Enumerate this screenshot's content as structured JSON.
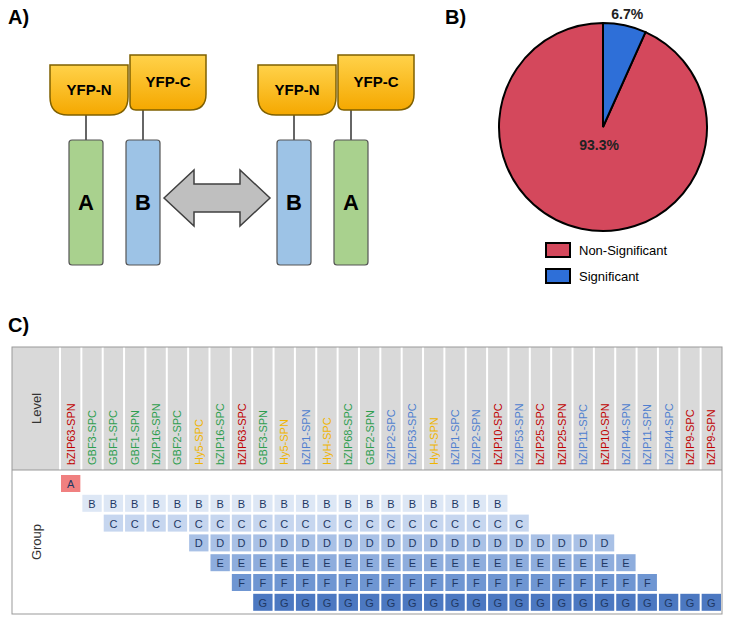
{
  "panel_a": {
    "label": "A)",
    "pairs": [
      [
        {
          "tag": "YFP-N",
          "protein": "A",
          "color": "#a9d18e"
        },
        {
          "tag": "YFP-C",
          "protein": "B",
          "color": "#9dc3e6"
        }
      ],
      [
        {
          "tag": "YFP-N",
          "protein": "B",
          "color": "#9dc3e6"
        },
        {
          "tag": "YFP-C",
          "protein": "A",
          "color": "#a9d18e"
        }
      ]
    ]
  },
  "chart_data": {
    "type": "pie",
    "title": "B)",
    "categories": [
      "Non-Significant",
      "Significant"
    ],
    "values": [
      93.3,
      6.7
    ],
    "value_labels": [
      "93.3%",
      "6.7%"
    ],
    "colors": [
      "#d4485c",
      "#2e6fd8"
    ],
    "data_labels": true,
    "legend": "bottom-right"
  },
  "panel_c": {
    "label": "C)",
    "row_titles": [
      "Level",
      "Group"
    ],
    "levels": [
      {
        "name": "bZIP63-SPN",
        "color": "#c00000"
      },
      {
        "name": "GBF3-SPC",
        "color": "#2e9e4f"
      },
      {
        "name": "GBF1-SPC",
        "color": "#2e9e4f"
      },
      {
        "name": "GBF1-SPN",
        "color": "#2e9e4f"
      },
      {
        "name": "bZIP16-SPN",
        "color": "#2e9e4f"
      },
      {
        "name": "GBF2-SPC",
        "color": "#2e9e4f"
      },
      {
        "name": "Hy5-SPC",
        "color": "#f0b400"
      },
      {
        "name": "bZIP16-SPC",
        "color": "#2e9e4f"
      },
      {
        "name": "bZIP63-SPC",
        "color": "#c00000"
      },
      {
        "name": "GBF3-SPN",
        "color": "#2e9e4f"
      },
      {
        "name": "Hy5-SPN",
        "color": "#f0b400"
      },
      {
        "name": "bZIP1-SPN",
        "color": "#4f7fcf"
      },
      {
        "name": "HyH-SPC",
        "color": "#f0b400"
      },
      {
        "name": "bZIP68-SPC",
        "color": "#2e9e4f"
      },
      {
        "name": "GBF2-SPN",
        "color": "#2e9e4f"
      },
      {
        "name": "bZIP2-SPC",
        "color": "#4f7fcf"
      },
      {
        "name": "bZIP53-SPC",
        "color": "#4f7fcf"
      },
      {
        "name": "HyH-SPN",
        "color": "#f0b400"
      },
      {
        "name": "bZIP1-SPC",
        "color": "#4f7fcf"
      },
      {
        "name": "bZIP2-SPN",
        "color": "#4f7fcf"
      },
      {
        "name": "bZIP10-SPC",
        "color": "#c00000"
      },
      {
        "name": "bZIP53-SPN",
        "color": "#4f7fcf"
      },
      {
        "name": "bZIP25-SPC",
        "color": "#c00000"
      },
      {
        "name": "bZIP25-SPN",
        "color": "#c00000"
      },
      {
        "name": "bZIP11-SPC",
        "color": "#4f7fcf"
      },
      {
        "name": "bZIP10-SPN",
        "color": "#c00000"
      },
      {
        "name": "bZIP44-SPN",
        "color": "#4f7fcf"
      },
      {
        "name": "bZIP11-SPN",
        "color": "#4f7fcf"
      },
      {
        "name": "bZIP44-SPC",
        "color": "#4f7fcf"
      },
      {
        "name": "bZIP9-SPC",
        "color": "#c00000"
      },
      {
        "name": "bZIP9-SPN",
        "color": "#c00000"
      }
    ],
    "groups": [
      {
        "name": "A",
        "first": "bZIP63-SPN",
        "last": "bZIP63-SPN",
        "color": "#f08080"
      },
      {
        "name": "B",
        "first": "GBF3-SPC",
        "last": "bZIP10-SPC",
        "color": "#dde7f5"
      },
      {
        "name": "C",
        "first": "GBF1-SPC",
        "last": "bZIP53-SPN",
        "color": "#c6d6ef"
      },
      {
        "name": "D",
        "first": "Hy5-SPC",
        "last": "bZIP10-SPN",
        "color": "#a9c1e6"
      },
      {
        "name": "E",
        "first": "bZIP16-SPC",
        "last": "bZIP44-SPN",
        "color": "#8eaddd"
      },
      {
        "name": "F",
        "first": "bZIP63-SPC",
        "last": "bZIP11-SPN",
        "color": "#6f96d2"
      },
      {
        "name": "G",
        "first": "GBF3-SPN",
        "last": "bZIP9-SPN",
        "color": "#4c78c1"
      }
    ]
  }
}
